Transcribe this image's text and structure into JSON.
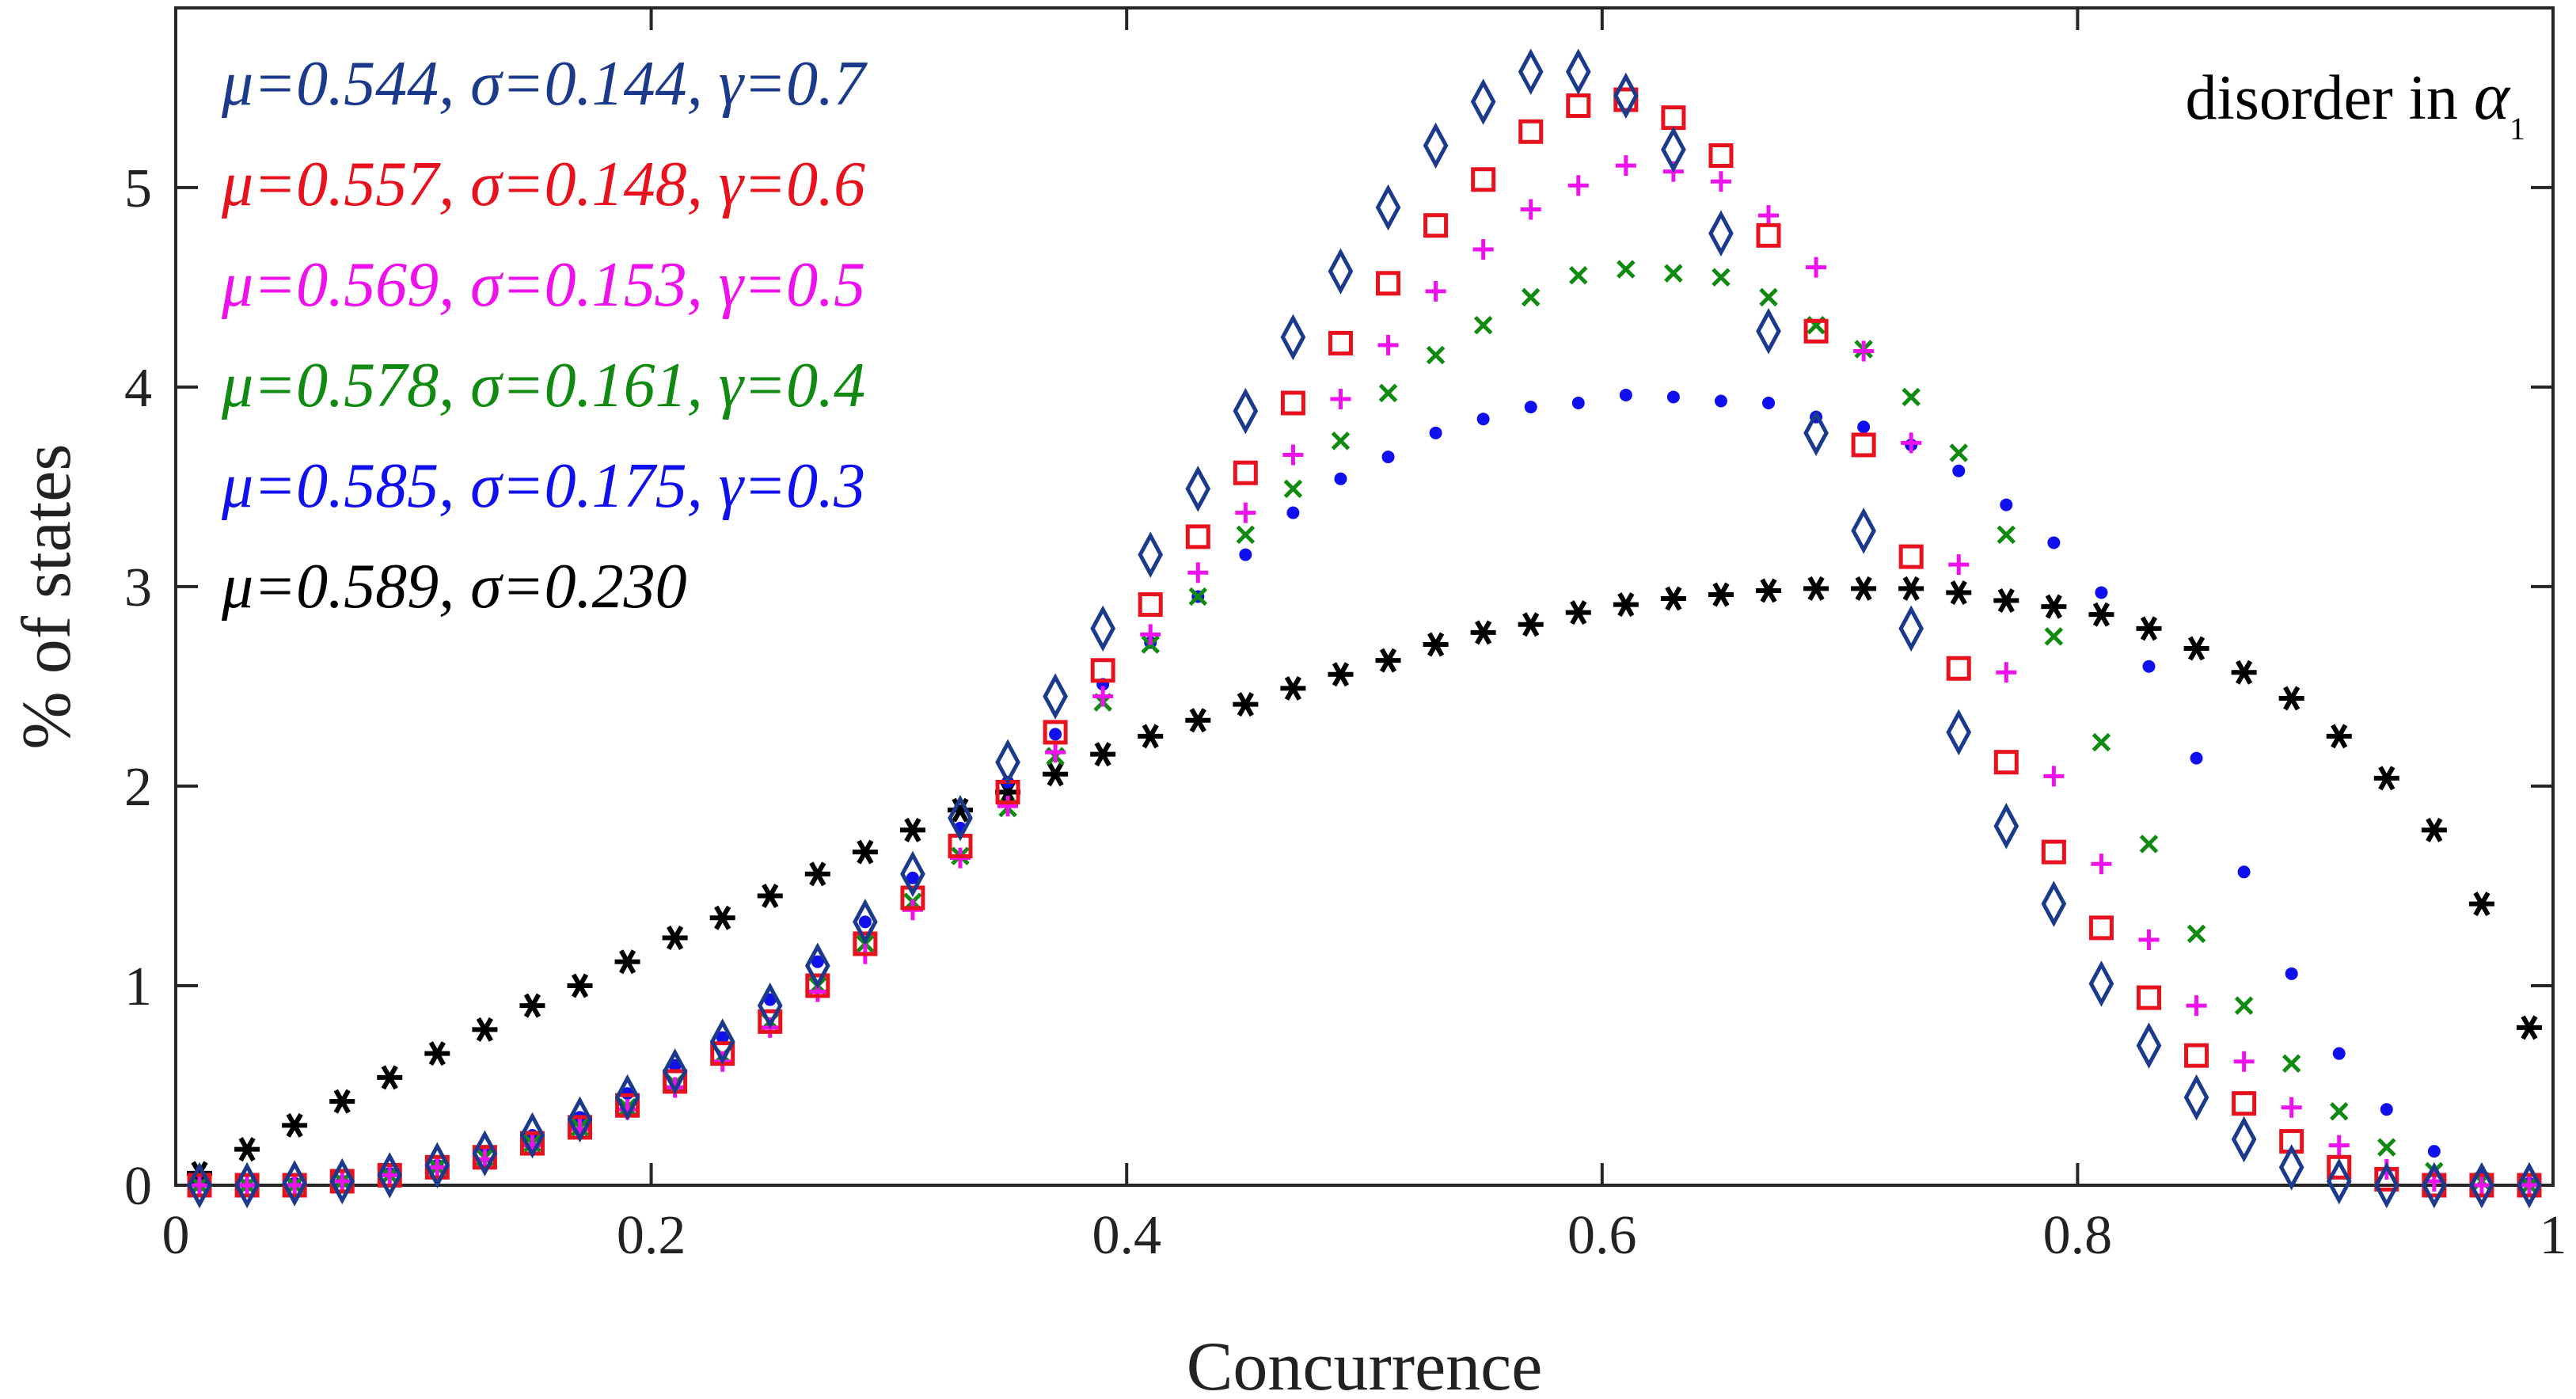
{
  "chart_data": {
    "type": "scatter",
    "xlabel": "Concurrence",
    "ylabel": "% of states",
    "xlim": [
      0,
      1
    ],
    "ylim": [
      0,
      5.9
    ],
    "x_ticks": [
      0,
      0.2,
      0.4,
      0.6,
      0.8,
      1
    ],
    "x_tick_labels": [
      "0",
      "0.2",
      "0.4",
      "0.6",
      "0.8",
      "1"
    ],
    "y_ticks": [
      0,
      1,
      2,
      3,
      4,
      5
    ],
    "y_tick_labels": [
      "0",
      "1",
      "2",
      "3",
      "4",
      "5"
    ],
    "grid": false,
    "annotation": {
      "text": "disorder in ",
      "symbol": "α",
      "subscript": "1",
      "placement": "top-right"
    },
    "legend_placement": "top-left",
    "x": [
      0.01,
      0.03,
      0.05,
      0.07,
      0.09,
      0.11,
      0.13,
      0.15,
      0.17,
      0.19,
      0.21,
      0.23,
      0.25,
      0.27,
      0.29,
      0.31,
      0.33,
      0.35,
      0.37,
      0.39,
      0.41,
      0.43,
      0.45,
      0.47,
      0.49,
      0.51,
      0.53,
      0.55,
      0.57,
      0.59,
      0.61,
      0.63,
      0.65,
      0.67,
      0.69,
      0.71,
      0.73,
      0.75,
      0.77,
      0.79,
      0.81,
      0.83,
      0.85,
      0.87,
      0.89,
      0.91,
      0.93,
      0.95,
      0.97,
      0.99
    ],
    "series": [
      {
        "name": "μ=0.544, σ=0.144, γ=0.7",
        "marker": "diamond",
        "color": "#1c3a8c",
        "values": [
          0.0,
          0.0,
          0.01,
          0.02,
          0.05,
          0.1,
          0.16,
          0.25,
          0.33,
          0.44,
          0.57,
          0.72,
          0.9,
          1.1,
          1.32,
          1.56,
          1.84,
          2.12,
          2.45,
          2.79,
          3.16,
          3.49,
          3.88,
          4.25,
          4.58,
          4.9,
          5.21,
          5.43,
          5.58,
          5.58,
          5.46,
          5.19,
          4.77,
          4.28,
          3.77,
          3.28,
          2.79,
          2.27,
          1.8,
          1.41,
          1.01,
          0.7,
          0.44,
          0.23,
          0.09,
          0.02,
          0.0,
          0.0,
          0.0,
          0.0
        ]
      },
      {
        "name": "μ=0.557, σ=0.148, γ=0.6",
        "marker": "square",
        "color": "#e8111e",
        "values": [
          0.0,
          0.0,
          0.0,
          0.02,
          0.05,
          0.09,
          0.14,
          0.21,
          0.29,
          0.4,
          0.52,
          0.66,
          0.82,
          1.0,
          1.21,
          1.44,
          1.7,
          1.97,
          2.27,
          2.58,
          2.91,
          3.25,
          3.57,
          3.92,
          4.22,
          4.52,
          4.81,
          5.04,
          5.28,
          5.41,
          5.44,
          5.35,
          5.16,
          4.76,
          4.28,
          3.71,
          3.15,
          2.59,
          2.12,
          1.67,
          1.29,
          0.94,
          0.65,
          0.41,
          0.22,
          0.09,
          0.03,
          0.0,
          0.0,
          0.0
        ]
      },
      {
        "name": "μ=0.569, σ=0.153, γ=0.5",
        "marker": "plus",
        "color": "#ee11ee",
        "values": [
          0.0,
          0.0,
          0.0,
          0.02,
          0.05,
          0.09,
          0.13,
          0.2,
          0.28,
          0.38,
          0.49,
          0.62,
          0.79,
          0.97,
          1.16,
          1.38,
          1.64,
          1.9,
          2.17,
          2.45,
          2.76,
          3.07,
          3.37,
          3.66,
          3.94,
          4.21,
          4.48,
          4.69,
          4.89,
          5.01,
          5.11,
          5.08,
          5.03,
          4.86,
          4.6,
          4.18,
          3.72,
          3.11,
          2.57,
          2.05,
          1.61,
          1.23,
          0.9,
          0.62,
          0.39,
          0.2,
          0.08,
          0.02,
          0.0,
          0.0
        ]
      },
      {
        "name": "μ=0.578, σ=0.161, γ=0.4",
        "marker": "x",
        "color": "#118a11",
        "values": [
          0.0,
          0.0,
          0.0,
          0.02,
          0.05,
          0.09,
          0.14,
          0.21,
          0.29,
          0.39,
          0.51,
          0.65,
          0.82,
          1.0,
          1.21,
          1.42,
          1.65,
          1.89,
          2.15,
          2.42,
          2.71,
          2.95,
          3.26,
          3.49,
          3.73,
          3.97,
          4.16,
          4.31,
          4.45,
          4.56,
          4.59,
          4.57,
          4.55,
          4.45,
          4.31,
          4.19,
          3.95,
          3.67,
          3.26,
          2.75,
          2.22,
          1.71,
          1.26,
          0.9,
          0.61,
          0.37,
          0.19,
          0.07,
          0.02,
          0.0
        ]
      },
      {
        "name": "μ=0.585, σ=0.175, γ=0.3",
        "marker": "dot",
        "color": "#1010ee",
        "values": [
          0.0,
          0.0,
          0.01,
          0.02,
          0.06,
          0.1,
          0.17,
          0.25,
          0.34,
          0.46,
          0.6,
          0.74,
          0.93,
          1.12,
          1.32,
          1.54,
          1.79,
          2.02,
          2.26,
          2.51,
          2.72,
          2.95,
          3.16,
          3.37,
          3.54,
          3.65,
          3.77,
          3.84,
          3.9,
          3.92,
          3.96,
          3.95,
          3.93,
          3.92,
          3.85,
          3.8,
          3.71,
          3.58,
          3.41,
          3.22,
          2.97,
          2.6,
          2.14,
          1.57,
          1.06,
          0.66,
          0.38,
          0.17,
          0.05,
          0.01
        ]
      },
      {
        "name": "μ=0.589, σ=0.230",
        "marker": "asterisk",
        "color": "#000000",
        "values": [
          0.06,
          0.18,
          0.3,
          0.42,
          0.54,
          0.66,
          0.78,
          0.9,
          1.0,
          1.12,
          1.24,
          1.34,
          1.45,
          1.56,
          1.67,
          1.78,
          1.88,
          1.97,
          2.06,
          2.16,
          2.25,
          2.33,
          2.41,
          2.49,
          2.56,
          2.63,
          2.71,
          2.77,
          2.81,
          2.87,
          2.91,
          2.94,
          2.96,
          2.98,
          2.99,
          2.99,
          2.99,
          2.97,
          2.93,
          2.9,
          2.86,
          2.79,
          2.69,
          2.57,
          2.44,
          2.25,
          2.04,
          1.78,
          1.41,
          0.79
        ]
      }
    ]
  }
}
